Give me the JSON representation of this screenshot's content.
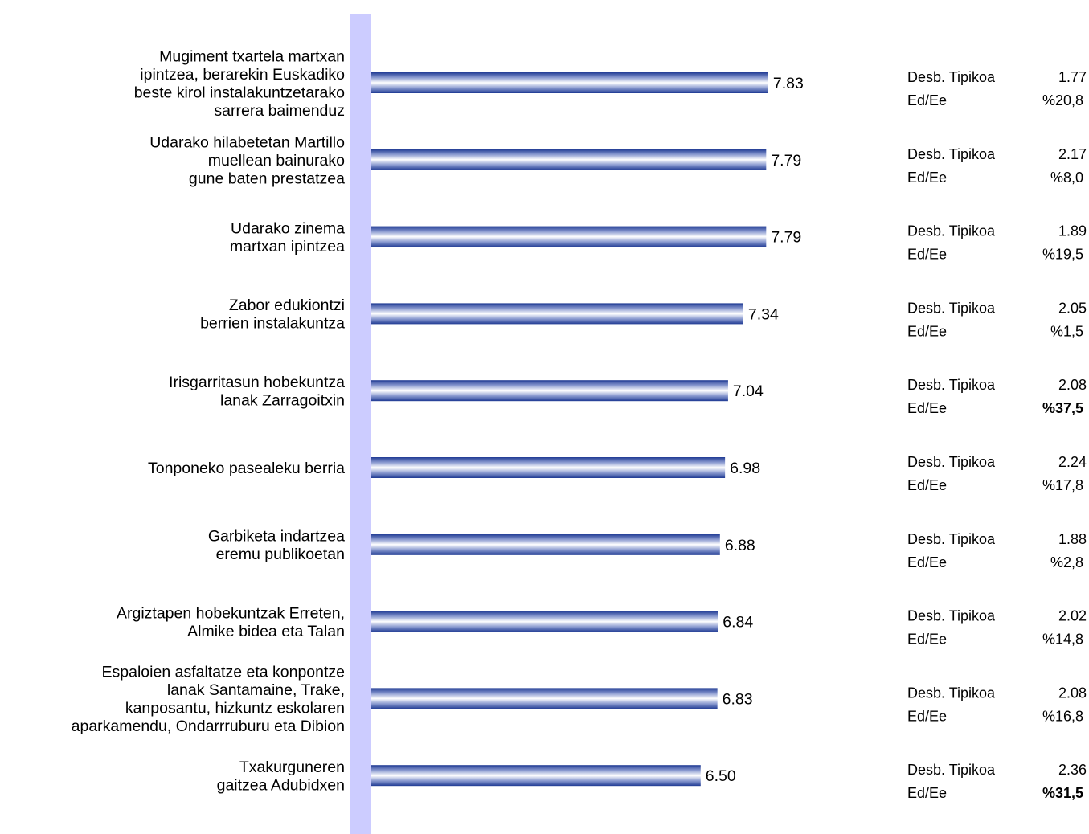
{
  "chart_data": {
    "type": "bar",
    "orientation": "horizontal",
    "categories": [
      [
        "Mugiment txartela martxan",
        "ipintzea, berarekin Euskadiko",
        "beste kirol instalakuntzetarako",
        "sarrera baimenduz"
      ],
      [
        "Udarako hilabetetan Martillo",
        "muellean bainurako",
        "gune baten prestatzea"
      ],
      [
        "Udarako zinema",
        "martxan ipintzea"
      ],
      [
        "Zabor edukiontzi",
        "berrien instalakuntza"
      ],
      [
        "Irisgarritasun hobekuntza",
        "lanak Zarragoitxin"
      ],
      [
        "Tonponeko pasealeku berria"
      ],
      [
        "Garbiketa indartzea",
        "eremu publikoetan"
      ],
      [
        "Argiztapen hobekuntzak Erreten,",
        "Almike bidea eta Talan"
      ],
      [
        "Espaloien asfaltatze eta konpontze",
        "lanak Santamaine, Trake,",
        "kanposantu, hizkuntz eskolaren",
        "aparkamendu, Ondarrruburu eta Dibion"
      ],
      [
        "Txakurguneren",
        "gaitzea Adubidxen"
      ]
    ],
    "values": [
      7.83,
      7.79,
      7.79,
      7.34,
      7.04,
      6.98,
      6.88,
      6.84,
      6.83,
      6.5
    ],
    "value_labels": [
      "7.83",
      "7.79",
      "7.79",
      "7.34",
      "7.04",
      "6.98",
      "6.88",
      "6.84",
      "6.83",
      "6.50"
    ],
    "stats": {
      "desb_label": "Desb. Tipikoa",
      "ed_label": "Ed/Ee",
      "desb_values": [
        "1.77",
        "2.17",
        "1.89",
        "2.05",
        "2.08",
        "2.24",
        "1.88",
        "2.02",
        "2.08",
        "2.36"
      ],
      "ed_values": [
        "%20,8",
        "%8,0",
        "%19,5",
        "%1,5",
        "%37,5",
        "%17,8",
        "%2,8",
        "%14,8",
        "%16,8",
        "%31,5"
      ],
      "ed_bold": [
        false,
        false,
        false,
        false,
        true,
        false,
        false,
        false,
        false,
        true
      ]
    },
    "xlim": [
      0,
      10
    ],
    "colors": {
      "bar_dark": "#1f3a93",
      "bar_light": "#ffffff",
      "axis_band": "#ccccff"
    }
  }
}
